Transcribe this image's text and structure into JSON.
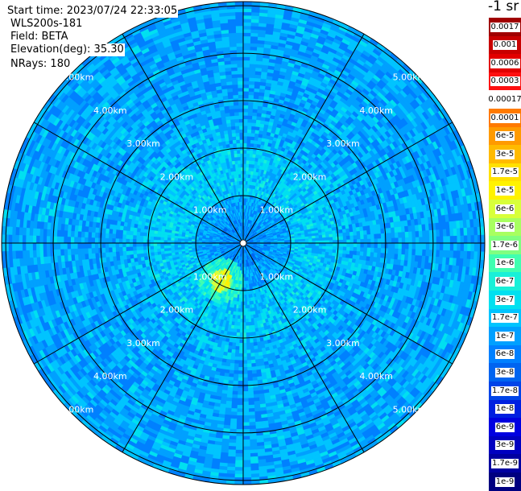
{
  "info": {
    "start_time": "Start time: 2023/07/24 22:33:05",
    "instrument": "WLS200s-181",
    "field": "Field: BETA",
    "elevation": "Elevation(deg): 35.30",
    "nrays": "NRays: 180"
  },
  "units_label": "-1 sr",
  "colorbar": {
    "labels": [
      "0.0017",
      "0.001",
      "0.0006",
      "0.0003",
      "0.00017",
      "0.0001",
      "6e-5",
      "3e-5",
      "1.7e-5",
      "1e-5",
      "6e-6",
      "3e-6",
      "1.7e-6",
      "1e-6",
      "6e-7",
      "3e-7",
      "1.7e-7",
      "1e-7",
      "6e-8",
      "3e-8",
      "1.7e-8",
      "1e-8",
      "6e-9",
      "3e-9",
      "1.7e-9",
      "1e-9"
    ],
    "colors": [
      "#a00000",
      "#c80000",
      "#e20000",
      "#fd1010",
      "#ffffff",
      "#ff7a00",
      "#ff9a00",
      "#ffba00",
      "#ffe000",
      "#fff200",
      "#d8ff3a",
      "#a8ff60",
      "#80ff80",
      "#40ffb0",
      "#18f0d8",
      "#00e0f0",
      "#00c4ff",
      "#00a0ff",
      "#0080ff",
      "#0064f0",
      "#0044e8",
      "#0020e0",
      "#0000e0",
      "#0000c0",
      "#0000a0",
      "#000080"
    ]
  },
  "range_rings": {
    "labels": [
      "1.00km",
      "2.00km",
      "3.00km",
      "4.00km",
      "5.00km"
    ]
  },
  "chart_data": {
    "type": "heatmap",
    "projection": "polar PPI",
    "field": "BETA",
    "elevation_deg": 35.3,
    "nrays": 180,
    "range_rings_km": [
      1,
      2,
      3,
      4,
      5
    ],
    "max_range_km": 5.0,
    "spoke_interval_deg": 30,
    "colorbar_values": [
      "0.0017",
      "0.001",
      "0.0006",
      "0.0003",
      "0.00017",
      "0.0001",
      "6e-5",
      "3e-5",
      "1.7e-5",
      "1e-5",
      "6e-6",
      "3e-6",
      "1.7e-6",
      "1e-6",
      "6e-7",
      "3e-7",
      "1.7e-7",
      "1e-7",
      "6e-8",
      "3e-8",
      "1.7e-8",
      "1e-8",
      "6e-9",
      "3e-9",
      "1.7e-9",
      "1e-9"
    ],
    "field_description": {
      "background_level": "1e-7",
      "inner_core_level_0_to_1km": "6e-8",
      "inner_zone_level_1_to_2km": "3e-7",
      "hotspot_level": "1e-5",
      "hotspot_azimuth_deg": 240,
      "hotspot_range_km": 0.9
    }
  }
}
